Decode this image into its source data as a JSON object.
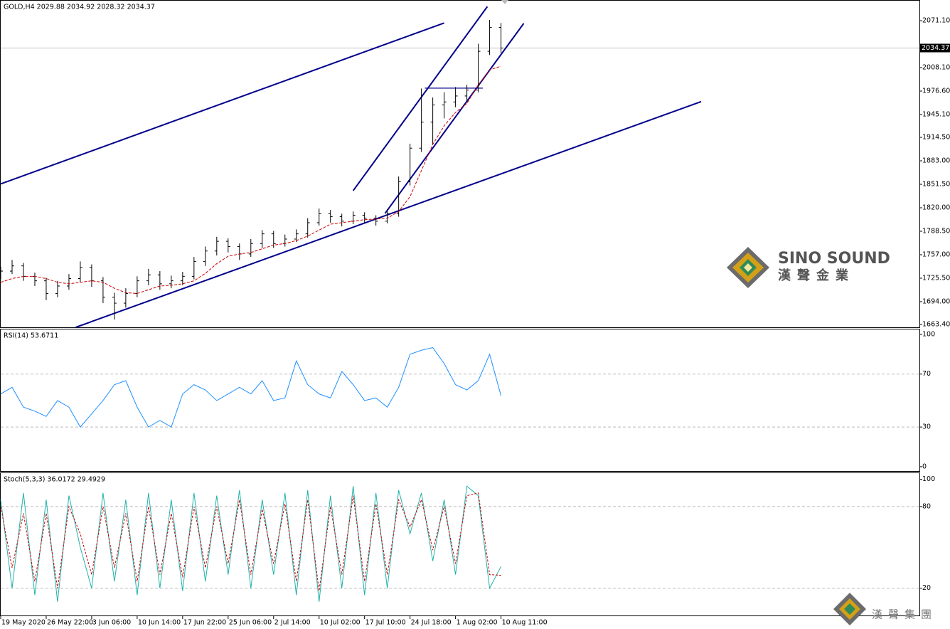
{
  "chart_data": [
    {
      "type": "ohlc",
      "title": "GOLD,H4  2029.88 2034.92 2028.32 2034.37",
      "x": [
        0,
        5,
        10,
        15,
        20,
        25,
        30,
        35,
        40,
        45,
        50,
        55,
        60,
        65,
        70,
        75,
        80,
        85,
        90,
        95,
        100,
        105,
        110,
        115,
        120,
        125,
        130,
        135,
        140,
        145,
        150,
        155,
        160,
        165,
        170,
        175,
        180,
        185,
        190,
        195,
        200,
        205,
        210,
        215,
        220
      ],
      "open": [
        1730,
        1735,
        1742,
        1728,
        1722,
        1705,
        1715,
        1725,
        1740,
        1722,
        1700,
        1692,
        1705,
        1722,
        1730,
        1718,
        1722,
        1728,
        1748,
        1762,
        1775,
        1768,
        1758,
        1772,
        1785,
        1772,
        1778,
        1785,
        1800,
        1812,
        1808,
        1802,
        1810,
        1806,
        1802,
        1812,
        1855,
        1900,
        1935,
        1958,
        1962,
        1970,
        1978,
        2030,
        2062
      ],
      "high": [
        1741,
        1750,
        1746,
        1733,
        1726,
        1722,
        1731,
        1748,
        1744,
        1727,
        1706,
        1712,
        1728,
        1738,
        1735,
        1729,
        1734,
        1754,
        1768,
        1781,
        1779,
        1772,
        1778,
        1790,
        1789,
        1784,
        1791,
        1806,
        1819,
        1817,
        1812,
        1815,
        1814,
        1810,
        1818,
        1862,
        1906,
        1980,
        1968,
        1975,
        1982,
        1985,
        2040,
        2072,
        2068
      ],
      "low": [
        1724,
        1731,
        1722,
        1715,
        1696,
        1700,
        1710,
        1720,
        1714,
        1692,
        1670,
        1686,
        1700,
        1716,
        1710,
        1712,
        1716,
        1724,
        1742,
        1756,
        1760,
        1750,
        1754,
        1766,
        1766,
        1768,
        1774,
        1780,
        1796,
        1800,
        1795,
        1798,
        1800,
        1796,
        1799,
        1808,
        1850,
        1895,
        1905,
        1940,
        1955,
        1962,
        1975,
        2025,
        2028
      ],
      "close": [
        1735,
        1742,
        1728,
        1722,
        1705,
        1715,
        1725,
        1740,
        1722,
        1700,
        1692,
        1705,
        1722,
        1730,
        1718,
        1722,
        1728,
        1748,
        1762,
        1775,
        1768,
        1758,
        1772,
        1785,
        1772,
        1778,
        1785,
        1800,
        1812,
        1808,
        1802,
        1810,
        1806,
        1802,
        1812,
        1855,
        1900,
        1935,
        1958,
        1962,
        1970,
        1978,
        2030,
        2062,
        2034.37
      ],
      "color": "#000000",
      "ma": {
        "color": "#d00000",
        "values": [
          1720,
          1725,
          1728,
          1728,
          1725,
          1720,
          1718,
          1720,
          1722,
          1720,
          1712,
          1706,
          1705,
          1710,
          1715,
          1716,
          1718,
          1722,
          1732,
          1745,
          1755,
          1758,
          1760,
          1765,
          1770,
          1772,
          1776,
          1782,
          1790,
          1798,
          1800,
          1802,
          1804,
          1805,
          1806,
          1815,
          1835,
          1870,
          1905,
          1930,
          1948,
          1960,
          1985,
          2005,
          2010
        ]
      },
      "trendlines": [
        {
          "color": "#00008b",
          "x": [
            0,
            195
          ],
          "y": [
            1852,
            2068
          ]
        },
        {
          "color": "#00008b",
          "x": [
            33,
            308
          ],
          "y": [
            1659.6,
            1962.4
          ]
        },
        {
          "color": "#00008b",
          "x": [
            155,
            214
          ],
          "y": [
            1843,
            2090
          ]
        },
        {
          "color": "#00008b",
          "x": [
            169,
            230
          ],
          "y": [
            1812.4,
            2067.4
          ]
        },
        {
          "color": "#00008b",
          "x": [
            186.5,
            212
          ],
          "y": [
            1980.5,
            1980.5
          ]
        }
      ],
      "last_price": 2034.37,
      "xlim": [
        0,
        404
      ],
      "ylim": [
        1659.6,
        2096.9
      ],
      "yticks": [
        {
          "value": 2071.1,
          "label": "2071.10"
        },
        {
          "value": 2008.1,
          "label": "2008.10"
        },
        {
          "value": 1976.6,
          "label": "1976.60"
        },
        {
          "value": 1945.1,
          "label": "1945.10"
        },
        {
          "value": 1914.5,
          "label": "1914.50"
        },
        {
          "value": 1883,
          "label": "1883.00"
        },
        {
          "value": 1851.5,
          "label": "1851.50"
        },
        {
          "value": 1820,
          "label": "1820.00"
        },
        {
          "value": 1788.5,
          "label": "1788.50"
        },
        {
          "value": 1757,
          "label": "1757.00"
        },
        {
          "value": 1725.5,
          "label": "1725.50"
        },
        {
          "value": 1694,
          "label": "1694.00"
        },
        {
          "value": 1663.4,
          "label": "1663.40"
        }
      ]
    },
    {
      "type": "line",
      "title": "RSI(14) 53.6711",
      "x": [
        0,
        5,
        10,
        15,
        20,
        25,
        30,
        35,
        40,
        45,
        50,
        55,
        60,
        65,
        70,
        75,
        80,
        85,
        90,
        95,
        100,
        105,
        110,
        115,
        120,
        125,
        130,
        135,
        140,
        145,
        150,
        155,
        160,
        165,
        170,
        175,
        180,
        185,
        190,
        195,
        200,
        205,
        210,
        215,
        220
      ],
      "series": [
        {
          "color": "#1e90ff",
          "values": [
            55,
            60,
            45,
            42,
            38,
            50,
            45,
            30,
            40,
            50,
            62,
            65,
            45,
            30,
            35,
            30,
            55,
            62,
            58,
            50,
            55,
            60,
            55,
            65,
            50,
            52,
            80,
            62,
            55,
            52,
            72,
            62,
            50,
            52,
            45,
            60,
            85,
            88,
            90,
            78,
            62,
            58,
            65,
            85,
            53.67
          ]
        }
      ],
      "levels": [
        70,
        30
      ],
      "xlim": [
        0,
        404
      ],
      "ylim": [
        -2.2,
        103.2
      ],
      "yticks": [
        100,
        70,
        30,
        0
      ]
    },
    {
      "type": "line",
      "title": "Stoch(5,3,3) 36.0172 29.4929",
      "x": [
        0,
        5,
        10,
        15,
        20,
        25,
        30,
        35,
        40,
        45,
        50,
        55,
        60,
        65,
        70,
        75,
        80,
        85,
        90,
        95,
        100,
        105,
        110,
        115,
        120,
        125,
        130,
        135,
        140,
        145,
        150,
        155,
        160,
        165,
        170,
        175,
        180,
        185,
        190,
        195,
        200,
        205,
        210,
        215,
        220
      ],
      "series": [
        {
          "color": "#20b2aa",
          "values": [
            85,
            20,
            90,
            15,
            85,
            10,
            88,
            50,
            20,
            90,
            25,
            85,
            15,
            90,
            20,
            85,
            18,
            90,
            25,
            88,
            30,
            92,
            20,
            85,
            30,
            90,
            15,
            92,
            10,
            88,
            20,
            95,
            15,
            90,
            20,
            92,
            60,
            90,
            40,
            85,
            30,
            95,
            88,
            20,
            36.02
          ]
        },
        {
          "color": "#d00000",
          "dashed": true,
          "values": [
            80,
            35,
            75,
            25,
            75,
            20,
            80,
            60,
            30,
            80,
            35,
            75,
            25,
            80,
            30,
            75,
            28,
            80,
            35,
            80,
            38,
            85,
            30,
            78,
            38,
            82,
            25,
            85,
            18,
            80,
            30,
            88,
            25,
            82,
            30,
            85,
            65,
            85,
            48,
            80,
            38,
            88,
            90,
            30,
            29.49
          ]
        }
      ],
      "levels": [
        80,
        20
      ],
      "xlim": [
        0,
        404
      ],
      "ylim": [
        0,
        104
      ],
      "yticks": [
        100,
        80,
        20
      ],
      "xticks": [
        {
          "value": 0,
          "label": "19 May 2020"
        },
        {
          "value": 20,
          "label": "26 May 22:00"
        },
        {
          "value": 40,
          "label": "3 Jun 06:00"
        },
        {
          "value": 60,
          "label": "10 Jun 14:00"
        },
        {
          "value": 80,
          "label": "17 Jun 22:00"
        },
        {
          "value": 100,
          "label": "25 Jun 06:00"
        },
        {
          "value": 120,
          "label": "2 Jul 14:00"
        },
        {
          "value": 140,
          "label": "10 Jul 02:00"
        },
        {
          "value": 160,
          "label": "17 Jul 10:00"
        },
        {
          "value": 180,
          "label": "24 Jul 18:00"
        },
        {
          "value": 200,
          "label": "1 Aug 02:00"
        },
        {
          "value": 220,
          "label": "10 Aug 11:00"
        }
      ]
    }
  ],
  "watermark": {
    "brand": "SINO SOUND",
    "chinese": "漢聲金業",
    "footer": "漢聲集團"
  }
}
